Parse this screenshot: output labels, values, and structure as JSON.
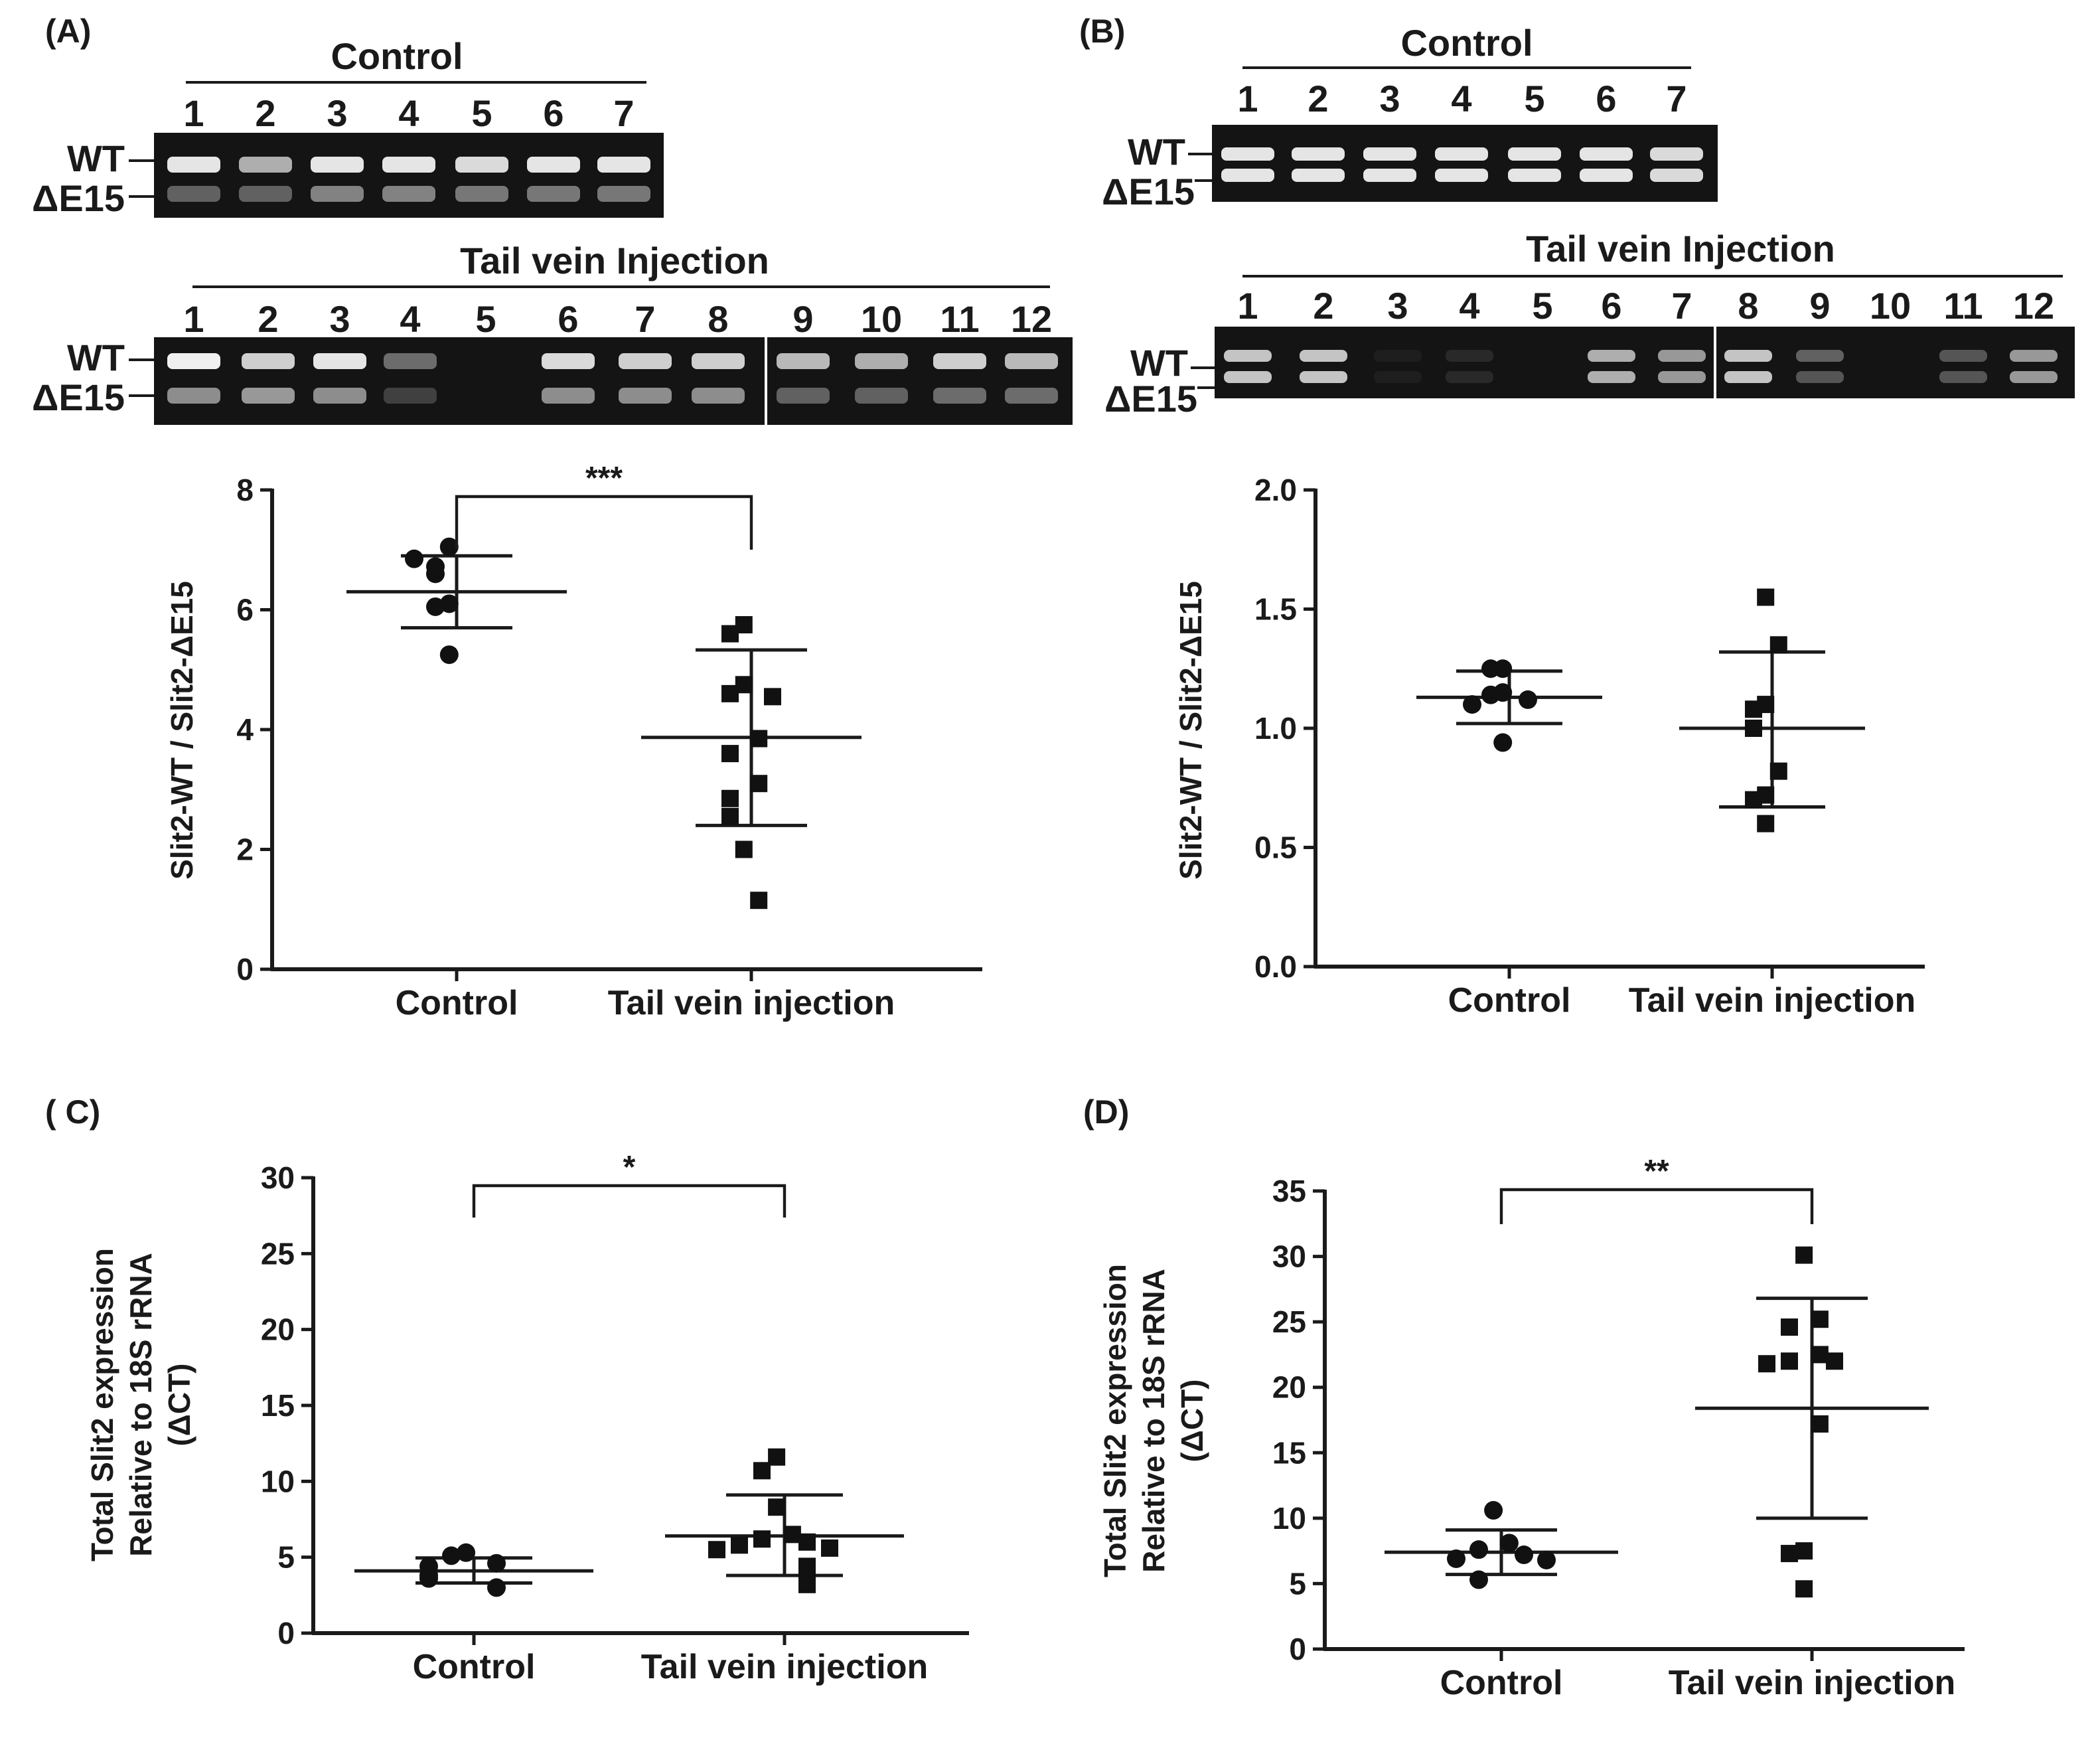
{
  "gel_panels": [
    {
      "id": "A",
      "panel_label": "(A)",
      "band_labels": [
        "WT",
        "ΔE15"
      ],
      "control_title": "Control",
      "control_lanes": [
        "1",
        "2",
        "3",
        "4",
        "5",
        "6",
        "7"
      ],
      "control_bands": [
        [
          0.95,
          0.35
        ],
        [
          0.7,
          0.35
        ],
        [
          0.95,
          0.5
        ],
        [
          0.95,
          0.5
        ],
        [
          0.9,
          0.45
        ],
        [
          0.95,
          0.45
        ],
        [
          0.95,
          0.45
        ]
      ],
      "injection_title": "Tail vein Injection",
      "injection_lanes": [
        "1",
        "2",
        "3",
        "4",
        "5",
        "6",
        "7",
        "8",
        "9",
        "10",
        "11",
        "12"
      ],
      "injection_bands": [
        [
          1.0,
          0.55
        ],
        [
          0.85,
          0.6
        ],
        [
          0.95,
          0.55
        ],
        [
          0.4,
          0.2
        ],
        [
          0.0,
          0.0
        ],
        [
          0.9,
          0.55
        ],
        [
          0.85,
          0.55
        ],
        [
          0.85,
          0.55
        ],
        [
          0.75,
          0.35
        ],
        [
          0.7,
          0.35
        ],
        [
          0.85,
          0.4
        ],
        [
          0.75,
          0.4
        ]
      ]
    },
    {
      "id": "B",
      "panel_label": "(B)",
      "band_labels": [
        "WT",
        "ΔE15"
      ],
      "control_title": "Control",
      "control_lanes": [
        "1",
        "2",
        "3",
        "4",
        "5",
        "6",
        "7"
      ],
      "control_bands": [
        [
          0.95,
          0.95
        ],
        [
          0.95,
          0.95
        ],
        [
          0.95,
          0.95
        ],
        [
          0.95,
          0.95
        ],
        [
          0.95,
          0.95
        ],
        [
          0.95,
          0.95
        ],
        [
          0.9,
          0.9
        ]
      ],
      "injection_title": "Tail vein Injection",
      "injection_lanes": [
        "1",
        "2",
        "3",
        "4",
        "5",
        "6",
        "7",
        "8",
        "9",
        "10",
        "11",
        "12"
      ],
      "injection_bands": [
        [
          0.8,
          0.8
        ],
        [
          0.8,
          0.8
        ],
        [
          0.05,
          0.05
        ],
        [
          0.1,
          0.1
        ],
        [
          0.0,
          0.0
        ],
        [
          0.7,
          0.7
        ],
        [
          0.6,
          0.6
        ],
        [
          0.8,
          0.8
        ],
        [
          0.35,
          0.3
        ],
        [
          0.0,
          0.0
        ],
        [
          0.3,
          0.3
        ],
        [
          0.6,
          0.6
        ]
      ]
    }
  ],
  "chart_data": [
    {
      "id": "A",
      "type": "scatter",
      "ylabel": [
        "Slit2-WT / Slit2-ΔE15"
      ],
      "ylim": [
        0,
        8
      ],
      "yticks": [
        "0",
        "2",
        "4",
        "6",
        "8"
      ],
      "categories": [
        "Control",
        "Tail vein injection"
      ],
      "significance": "***",
      "series": [
        {
          "category": "Control",
          "marker": "circle",
          "mean": 6.3,
          "sd_upper": 6.9,
          "sd_lower": 5.7,
          "values": [
            7.05,
            6.72,
            6.6,
            6.85,
            6.1,
            6.05,
            5.25
          ]
        },
        {
          "category": "Tail vein injection",
          "marker": "square",
          "mean": 3.87,
          "sd_upper": 5.33,
          "sd_lower": 2.4,
          "values": [
            5.75,
            5.6,
            4.75,
            4.6,
            4.55,
            3.85,
            3.6,
            3.1,
            2.85,
            2.55,
            2.0,
            1.15
          ]
        }
      ]
    },
    {
      "id": "B",
      "type": "scatter",
      "ylabel": [
        "Slit2-WT / Slit2-ΔE15"
      ],
      "ylim": [
        0,
        2
      ],
      "yticks": [
        "0.0",
        "0.5",
        "1.0",
        "1.5",
        "2.0"
      ],
      "categories": [
        "Control",
        "Tail vein injection"
      ],
      "significance": "",
      "series": [
        {
          "category": "Control",
          "marker": "circle",
          "mean": 1.13,
          "sd_upper": 1.24,
          "sd_lower": 1.02,
          "values": [
            1.25,
            1.25,
            1.15,
            1.14,
            1.12,
            1.1,
            0.94
          ]
        },
        {
          "category": "Tail vein injection",
          "marker": "square",
          "mean": 1.0,
          "sd_upper": 1.32,
          "sd_lower": 0.67,
          "values": [
            1.55,
            1.35,
            1.1,
            1.08,
            1.0,
            0.82,
            0.72,
            0.7,
            0.6
          ]
        }
      ]
    },
    {
      "id": "C",
      "type": "scatter",
      "panel_label": "( C)",
      "ylabel": [
        "Total Slit2 expression",
        "Relative to 18S rRNA",
        "(ΔCT)"
      ],
      "ylim": [
        0,
        30
      ],
      "yticks": [
        "0",
        "5",
        "10",
        "15",
        "20",
        "25",
        "30"
      ],
      "categories": [
        "Control",
        "Tail vein injection"
      ],
      "significance": "*",
      "series": [
        {
          "category": "Control",
          "marker": "circle",
          "mean": 4.1,
          "sd_upper": 4.95,
          "sd_lower": 3.3,
          "values": [
            5.3,
            5.1,
            4.6,
            4.4,
            3.8,
            3.6,
            3.0
          ]
        },
        {
          "category": "Tail vein injection",
          "marker": "square",
          "mean": 6.4,
          "sd_upper": 9.1,
          "sd_lower": 3.8,
          "values": [
            11.6,
            10.7,
            8.3,
            6.5,
            6.2,
            6.0,
            5.8,
            5.6,
            5.5,
            4.4,
            4.2,
            3.2
          ]
        }
      ]
    },
    {
      "id": "D",
      "type": "scatter",
      "panel_label": "(D)",
      "ylabel": [
        "Total Slit2 expression",
        "Relative to 18S rRNA",
        "(ΔCT)"
      ],
      "ylim": [
        0,
        35
      ],
      "yticks": [
        "0",
        "5",
        "10",
        "15",
        "20",
        "25",
        "30",
        "35"
      ],
      "categories": [
        "Control",
        "Tail vein injection"
      ],
      "significance": "**",
      "series": [
        {
          "category": "Control",
          "marker": "circle",
          "mean": 7.4,
          "sd_upper": 9.1,
          "sd_lower": 5.7,
          "values": [
            10.6,
            8.1,
            7.6,
            7.2,
            6.9,
            6.8,
            5.3
          ]
        },
        {
          "category": "Tail vein injection",
          "marker": "square",
          "mean": 18.4,
          "sd_upper": 26.8,
          "sd_lower": 10.0,
          "values": [
            30.1,
            25.2,
            24.6,
            22.5,
            22.0,
            22.0,
            21.8,
            17.2,
            7.5,
            7.3,
            4.6
          ]
        }
      ]
    }
  ]
}
